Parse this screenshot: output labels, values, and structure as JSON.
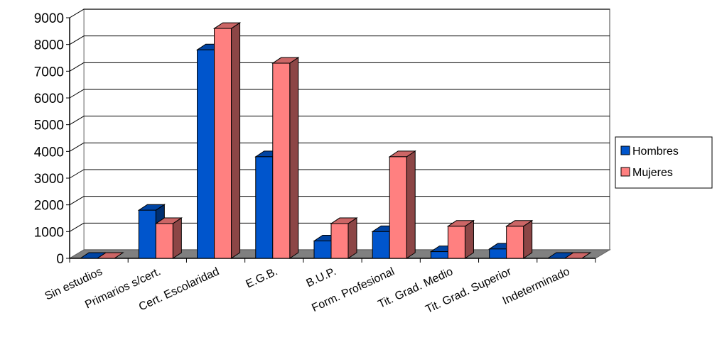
{
  "chart_data": {
    "type": "bar",
    "style": "3d-clustered-column",
    "categories": [
      "Sin estudios",
      "Primarios s/cert.",
      "Cert. Escolaridad",
      "E.G.B.",
      "B.U.P.",
      "Form. Profesional",
      "Tit. Grad. Medio",
      "Tit. Grad. Superior",
      "Indeterminado"
    ],
    "series": [
      {
        "name": "Hombres",
        "values": [
          0,
          1800,
          7800,
          3800,
          650,
          1000,
          250,
          350,
          0
        ],
        "color": "#0055cc"
      },
      {
        "name": "Mujeres",
        "values": [
          0,
          1300,
          8600,
          7300,
          1300,
          3800,
          1200,
          1200,
          0
        ],
        "color": "#ff8080"
      }
    ],
    "ylim": [
      0,
      9000
    ],
    "yticks": [
      0,
      1000,
      2000,
      3000,
      4000,
      5000,
      6000,
      7000,
      8000,
      9000
    ],
    "grid": true,
    "legend": "right",
    "title": "",
    "xlabel": "",
    "ylabel": ""
  }
}
